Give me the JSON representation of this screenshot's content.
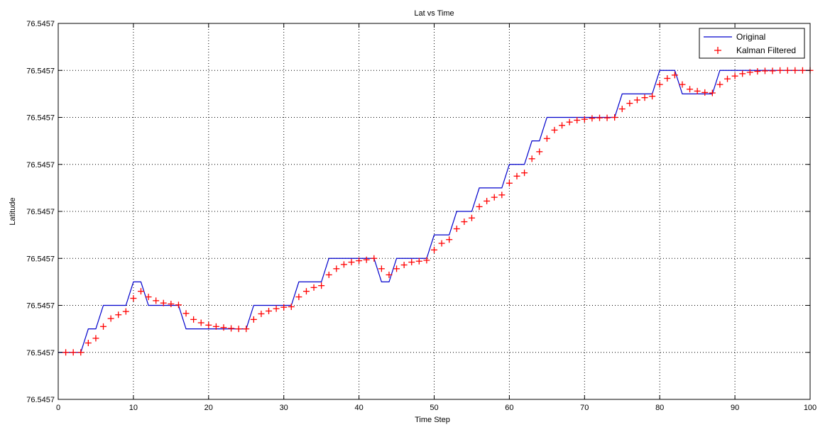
{
  "chart_data": {
    "type": "line",
    "title": "Lat vs Time",
    "xlabel": "Time Step",
    "ylabel": "Latitude",
    "xlim": [
      0,
      100
    ],
    "ylim": [
      0,
      8
    ],
    "y_note_units": "normalized level index (tick labels all read 76.5457)",
    "grid": true,
    "legend_position": "top-right",
    "x_ticks": [
      0,
      10,
      20,
      30,
      40,
      50,
      60,
      70,
      80,
      90,
      100
    ],
    "x_tick_labels": [
      "0",
      "10",
      "20",
      "30",
      "40",
      "50",
      "60",
      "70",
      "80",
      "90",
      "100"
    ],
    "y_ticks": [
      0,
      1,
      2,
      3,
      4,
      5,
      6,
      7,
      8
    ],
    "y_tick_labels": [
      "76.5457",
      "76.5457",
      "76.5457",
      "76.5457",
      "76.5457",
      "76.5457",
      "76.5457",
      "76.5457",
      "76.5457"
    ],
    "series": [
      {
        "name": "Original",
        "style": "line",
        "color": "#0000cc",
        "x": [
          0,
          3,
          4,
          5,
          6,
          9,
          10,
          11,
          12,
          16,
          17,
          25,
          26,
          31,
          32,
          35,
          36,
          42,
          43,
          44,
          45,
          49,
          50,
          52,
          53,
          55,
          56,
          59,
          60,
          62,
          63,
          64,
          65,
          74,
          75,
          79,
          80,
          82,
          83,
          87,
          88,
          100
        ],
        "y": [
          1.0,
          1.0,
          1.5,
          1.5,
          2.0,
          2.0,
          2.5,
          2.5,
          2.0,
          2.0,
          1.5,
          1.5,
          2.0,
          2.0,
          2.5,
          2.5,
          3.0,
          3.0,
          2.5,
          2.5,
          3.0,
          3.0,
          3.5,
          3.5,
          4.0,
          4.0,
          4.5,
          4.5,
          5.0,
          5.0,
          5.5,
          5.5,
          6.0,
          6.0,
          6.5,
          6.5,
          7.0,
          7.0,
          6.5,
          6.5,
          7.0,
          7.0
        ]
      },
      {
        "name": "Kalman Filtered",
        "style": "marker-plus",
        "color": "#ff0000",
        "x": [
          1,
          2,
          3,
          4,
          5,
          6,
          7,
          8,
          9,
          10,
          11,
          12,
          13,
          14,
          15,
          16,
          17,
          18,
          19,
          20,
          21,
          22,
          23,
          24,
          25,
          26,
          27,
          28,
          29,
          30,
          31,
          32,
          33,
          34,
          35,
          36,
          37,
          38,
          39,
          40,
          41,
          42,
          43,
          44,
          45,
          46,
          47,
          48,
          49,
          50,
          51,
          52,
          53,
          54,
          55,
          56,
          57,
          58,
          59,
          60,
          61,
          62,
          63,
          64,
          65,
          66,
          67,
          68,
          69,
          70,
          71,
          72,
          73,
          74,
          75,
          76,
          77,
          78,
          79,
          80,
          81,
          82,
          83,
          84,
          85,
          86,
          87,
          88,
          89,
          90,
          91,
          92,
          93,
          94,
          95,
          96,
          97,
          98,
          99,
          100
        ],
        "y": [
          1.0,
          1.0,
          1.0,
          1.2,
          1.3,
          1.55,
          1.72,
          1.8,
          1.87,
          2.15,
          2.3,
          2.18,
          2.1,
          2.05,
          2.03,
          2.01,
          1.83,
          1.7,
          1.63,
          1.58,
          1.55,
          1.53,
          1.51,
          1.5,
          1.5,
          1.7,
          1.82,
          1.88,
          1.93,
          1.96,
          1.97,
          2.18,
          2.3,
          2.38,
          2.42,
          2.65,
          2.78,
          2.87,
          2.92,
          2.95,
          2.97,
          3.0,
          2.78,
          2.65,
          2.78,
          2.86,
          2.92,
          2.94,
          2.96,
          3.18,
          3.32,
          3.4,
          3.63,
          3.78,
          3.86,
          4.1,
          4.22,
          4.3,
          4.35,
          4.6,
          4.75,
          4.82,
          5.12,
          5.27,
          5.55,
          5.73,
          5.83,
          5.9,
          5.94,
          5.96,
          5.98,
          5.99,
          5.99,
          6.0,
          6.18,
          6.3,
          6.37,
          6.42,
          6.45,
          6.7,
          6.83,
          6.9,
          6.7,
          6.6,
          6.56,
          6.53,
          6.52,
          6.7,
          6.82,
          6.88,
          6.93,
          6.96,
          6.98,
          6.99,
          6.99,
          7.0,
          7.0,
          7.0,
          7.0,
          7.0
        ]
      }
    ]
  }
}
